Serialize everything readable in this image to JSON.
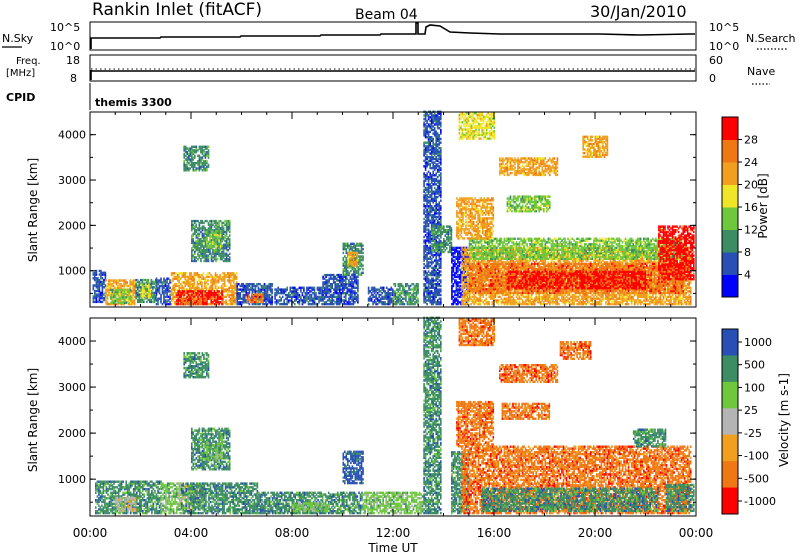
{
  "header": {
    "title": "Rankin Inlet (fitACF)",
    "beam": "Beam 04",
    "date": "30/Jan/2010"
  },
  "top_panels": {
    "nsky_label": "N.Sky",
    "nsky_ticks": [
      "10^5",
      "10^0"
    ],
    "nsearch_label": "N.Search",
    "nsearch_ticks": [
      "10^5",
      "10^0"
    ],
    "freq_label": "Freq.",
    "freq_unit": "[MHz]",
    "freq_ticks": [
      "18",
      "8"
    ],
    "nave_label": "Nave",
    "nave_ticks": [
      "60",
      "0"
    ],
    "cpid_label": "CPID",
    "cpid_value": "themis 3300"
  },
  "chart_data": [
    {
      "type": "heatmap",
      "name": "power",
      "ylabel": "Slant Range [km]",
      "yticks": [
        "4000",
        "3000",
        "2000",
        "1000"
      ],
      "ytick_values": [
        4000,
        3000,
        2000,
        1000
      ],
      "ylim": [
        200,
        4500
      ],
      "xlim": [
        0,
        24
      ],
      "colorbar_label": "Power [dB]",
      "colorbar_ticks": [
        "28",
        "24",
        "20",
        "16",
        "12",
        "8",
        "4"
      ],
      "colorbar_range": [
        0,
        32
      ],
      "colors": [
        "#0000ff",
        "#2850b4",
        "#3c8c64",
        "#6ec83c",
        "#f0e628",
        "#f0a01e",
        "#f07814",
        "#ff0000"
      ],
      "regions": [
        {
          "t0": 0.1,
          "t1": 0.6,
          "r0": 300,
          "r1": 1000,
          "c": 1
        },
        {
          "t0": 0.6,
          "t1": 1.8,
          "r0": 250,
          "r1": 800,
          "c": 5
        },
        {
          "t0": 0.8,
          "t1": 1.6,
          "r0": 280,
          "r1": 600,
          "c": 3
        },
        {
          "t0": 1.8,
          "t1": 2.6,
          "r0": 300,
          "r1": 800,
          "c": 2
        },
        {
          "t0": 2.0,
          "t1": 2.4,
          "r0": 400,
          "r1": 700,
          "c": 4
        },
        {
          "t0": 2.6,
          "t1": 3.2,
          "r0": 250,
          "r1": 850,
          "c": 1
        },
        {
          "t0": 3.2,
          "t1": 5.8,
          "r0": 250,
          "r1": 950,
          "c": 5
        },
        {
          "t0": 3.4,
          "t1": 5.2,
          "r0": 250,
          "r1": 550,
          "c": 7
        },
        {
          "t0": 3.6,
          "t1": 4.6,
          "r0": 250,
          "r1": 380,
          "c": 6
        },
        {
          "t0": 4.0,
          "t1": 5.5,
          "r0": 1200,
          "r1": 2100,
          "c": 2
        },
        {
          "t0": 4.6,
          "t1": 5.2,
          "r0": 1500,
          "r1": 1900,
          "c": 3
        },
        {
          "t0": 3.7,
          "t1": 4.7,
          "r0": 3200,
          "r1": 3750,
          "c": 2
        },
        {
          "t0": 5.8,
          "t1": 7.2,
          "r0": 250,
          "r1": 700,
          "c": 1
        },
        {
          "t0": 6.2,
          "t1": 6.8,
          "r0": 300,
          "r1": 500,
          "c": 6
        },
        {
          "t0": 7.3,
          "t1": 9.2,
          "r0": 250,
          "r1": 650,
          "c": 1
        },
        {
          "t0": 9.2,
          "t1": 10.6,
          "r0": 250,
          "r1": 900,
          "c": 1
        },
        {
          "t0": 10.0,
          "t1": 10.8,
          "r0": 900,
          "r1": 1600,
          "c": 2
        },
        {
          "t0": 10.2,
          "t1": 10.6,
          "r0": 1100,
          "r1": 1400,
          "c": 5
        },
        {
          "t0": 11.0,
          "t1": 12.0,
          "r0": 250,
          "r1": 650,
          "c": 1
        },
        {
          "t0": 12.0,
          "t1": 13.0,
          "r0": 250,
          "r1": 700,
          "c": 2
        },
        {
          "t0": 13.2,
          "t1": 13.9,
          "r0": 250,
          "r1": 4500,
          "c": 1
        },
        {
          "t0": 13.5,
          "t1": 14.3,
          "r0": 1400,
          "r1": 2000,
          "c": 2
        },
        {
          "t0": 14.3,
          "t1": 15.0,
          "r0": 250,
          "r1": 1500,
          "c": 0
        },
        {
          "t0": 14.7,
          "t1": 23.8,
          "r0": 250,
          "r1": 1500,
          "c": 5
        },
        {
          "t0": 15.0,
          "t1": 23.5,
          "r0": 500,
          "r1": 1150,
          "c": 6
        },
        {
          "t0": 16.5,
          "t1": 22.0,
          "r0": 600,
          "r1": 1000,
          "c": 7
        },
        {
          "t0": 15.0,
          "t1": 23.5,
          "r0": 1250,
          "r1": 1700,
          "c": 3
        },
        {
          "t0": 14.5,
          "t1": 16.0,
          "r0": 1700,
          "r1": 2600,
          "c": 5
        },
        {
          "t0": 16.5,
          "t1": 18.2,
          "r0": 2300,
          "r1": 2650,
          "c": 3
        },
        {
          "t0": 16.2,
          "t1": 18.5,
          "r0": 3100,
          "r1": 3500,
          "c": 5
        },
        {
          "t0": 19.5,
          "t1": 20.5,
          "r0": 3500,
          "r1": 3950,
          "c": 5
        },
        {
          "t0": 22.5,
          "t1": 23.9,
          "r0": 800,
          "r1": 2000,
          "c": 7
        },
        {
          "t0": 14.6,
          "t1": 16.0,
          "r0": 3900,
          "r1": 4500,
          "c": 4
        }
      ]
    },
    {
      "type": "heatmap",
      "name": "velocity",
      "ylabel": "Slant Range [km]",
      "yticks": [
        "4000",
        "3000",
        "2000",
        "1000"
      ],
      "ytick_values": [
        4000,
        3000,
        2000,
        1000
      ],
      "ylim": [
        200,
        4500
      ],
      "xlim": [
        0,
        24
      ],
      "colorbar_label": "Velocity [m s-1]",
      "colorbar_ticks": [
        "1000",
        "500",
        "100",
        "25",
        "-25",
        "-100",
        "-500",
        "-1000"
      ],
      "colors": [
        "#2850b4",
        "#3c8c64",
        "#6ec83c",
        "#b4b4b4",
        "#f0a01e",
        "#f07814",
        "#ff0000"
      ],
      "regions": [
        {
          "t0": 0.2,
          "t1": 2.8,
          "r0": 250,
          "r1": 950,
          "c": 1
        },
        {
          "t0": 1.0,
          "t1": 1.8,
          "r0": 300,
          "r1": 600,
          "c": 3
        },
        {
          "t0": 2.8,
          "t1": 3.6,
          "r0": 250,
          "r1": 900,
          "c": 2
        },
        {
          "t0": 3.5,
          "t1": 4.4,
          "r0": 350,
          "r1": 900,
          "c": 3
        },
        {
          "t0": 3.6,
          "t1": 6.6,
          "r0": 250,
          "r1": 900,
          "c": 1
        },
        {
          "t0": 4.0,
          "t1": 5.5,
          "r0": 1200,
          "r1": 2100,
          "c": 1
        },
        {
          "t0": 4.6,
          "t1": 5.2,
          "r0": 1400,
          "r1": 1800,
          "c": 2
        },
        {
          "t0": 3.7,
          "t1": 4.7,
          "r0": 3200,
          "r1": 3750,
          "c": 1
        },
        {
          "t0": 6.6,
          "t1": 10.8,
          "r0": 250,
          "r1": 700,
          "c": 1
        },
        {
          "t0": 8.0,
          "t1": 9.5,
          "r0": 300,
          "r1": 500,
          "c": 2
        },
        {
          "t0": 10.0,
          "t1": 10.8,
          "r0": 900,
          "r1": 1600,
          "c": 0
        },
        {
          "t0": 10.8,
          "t1": 13.2,
          "r0": 250,
          "r1": 700,
          "c": 2
        },
        {
          "t0": 13.2,
          "t1": 13.9,
          "r0": 250,
          "r1": 4500,
          "c": 1
        },
        {
          "t0": 14.3,
          "t1": 15.0,
          "r0": 250,
          "r1": 1600,
          "c": 1
        },
        {
          "t0": 14.7,
          "t1": 23.8,
          "r0": 250,
          "r1": 1700,
          "c": 5
        },
        {
          "t0": 15.5,
          "t1": 22.5,
          "r0": 300,
          "r1": 800,
          "c": 1
        },
        {
          "t0": 14.5,
          "t1": 16.0,
          "r0": 1700,
          "r1": 2700,
          "c": 5
        },
        {
          "t0": 16.3,
          "t1": 18.2,
          "r0": 2300,
          "r1": 2650,
          "c": 5
        },
        {
          "t0": 16.2,
          "t1": 18.5,
          "r0": 3100,
          "r1": 3500,
          "c": 5
        },
        {
          "t0": 18.6,
          "t1": 19.8,
          "r0": 3600,
          "r1": 4000,
          "c": 5
        },
        {
          "t0": 21.5,
          "t1": 22.8,
          "r0": 1700,
          "r1": 2100,
          "c": 1
        },
        {
          "t0": 14.6,
          "t1": 16.0,
          "r0": 3900,
          "r1": 4500,
          "c": 5
        },
        {
          "t0": 22.8,
          "t1": 23.9,
          "r0": 300,
          "r1": 900,
          "c": 1
        }
      ]
    }
  ],
  "xaxis": {
    "label": "Time UT",
    "ticks": [
      "00:00",
      "04:00",
      "08:00",
      "12:00",
      "16:00",
      "20:00",
      "00:00"
    ],
    "tick_values": [
      0,
      4,
      8,
      12,
      16,
      20,
      24
    ]
  }
}
